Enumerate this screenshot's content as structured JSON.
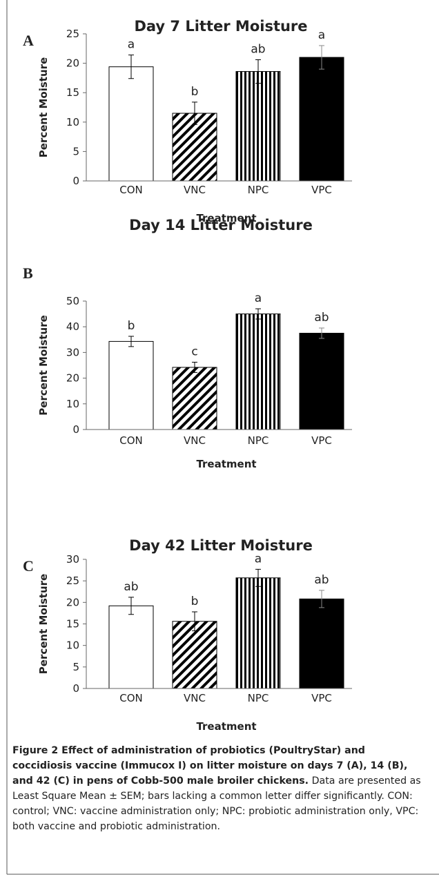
{
  "chart_data": [
    {
      "type": "bar",
      "panel": "A",
      "title": "Day 7 Litter Moisture",
      "y_label": "Percent Moisture",
      "x_label": "Treatment",
      "categories": [
        "CON",
        "VNC",
        "NPC",
        "VPC"
      ],
      "values": [
        19.4,
        11.5,
        18.6,
        21.0
      ],
      "errors": [
        2.0,
        1.9,
        2.0,
        2.0
      ],
      "letters": [
        "a",
        "b",
        "ab",
        "a"
      ],
      "fills": [
        "white",
        "diagonal",
        "vertical",
        "black"
      ],
      "ylim": [
        0,
        25
      ],
      "yticks": [
        0,
        5,
        10,
        15,
        20,
        25
      ]
    },
    {
      "type": "bar",
      "panel": "B",
      "title": "Day 14 Litter Moisture",
      "y_label": "Percent Moisture",
      "x_label": "Treatment",
      "categories": [
        "CON",
        "VNC",
        "NPC",
        "VPC"
      ],
      "values": [
        34.3,
        24.2,
        45.0,
        37.5
      ],
      "errors": [
        2.0,
        2.0,
        2.0,
        2.0
      ],
      "letters": [
        "b",
        "c",
        "a",
        "ab"
      ],
      "fills": [
        "white",
        "diagonal",
        "vertical",
        "black"
      ],
      "ylim": [
        0,
        50
      ],
      "yticks": [
        0,
        10,
        20,
        30,
        40,
        50
      ]
    },
    {
      "type": "bar",
      "panel": "C",
      "title": "Day 42 Litter Moisture",
      "y_label": "Percent Moisture",
      "x_label": "Treatment",
      "categories": [
        "CON",
        "VNC",
        "NPC",
        "VPC"
      ],
      "values": [
        19.2,
        15.6,
        25.7,
        20.8
      ],
      "errors": [
        2.0,
        2.2,
        2.0,
        2.0
      ],
      "letters": [
        "ab",
        "b",
        "a",
        "ab"
      ],
      "fills": [
        "white",
        "diagonal",
        "vertical",
        "black"
      ],
      "ylim": [
        0,
        30
      ],
      "yticks": [
        0,
        5,
        10,
        15,
        20,
        25,
        30
      ]
    }
  ],
  "caption": {
    "title": "Figure 2  Effect of administration of probiotics (PoultryStar) and coccidiosis vaccine (Immucox I) on litter moisture on days 7 (A), 14 (B), and 42 (C) in pens of Cobb-500 male broiler chickens.",
    "text": "Data are presented as Least Square Mean ± SEM; bars lacking a common letter differ significantly. CON: control; VNC: vaccine administration only; NPC: probiotic administration only, VPC: both vaccine and probiotic administration."
  }
}
